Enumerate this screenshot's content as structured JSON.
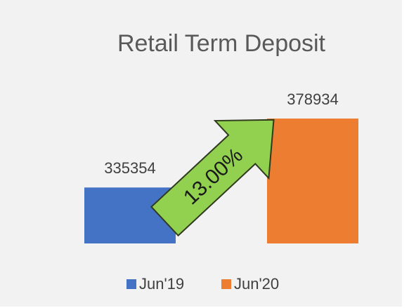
{
  "chart_data": {
    "type": "bar",
    "title": "Retail Term Deposit",
    "categories": [
      null
    ],
    "series": [
      {
        "name": "Jun'19",
        "color": "#4472c4",
        "values": [
          335354
        ]
      },
      {
        "name": "Jun'20",
        "color": "#ed7d31",
        "values": [
          378934
        ]
      }
    ],
    "ylim": [
      300000,
      390000
    ],
    "annotation": "13.00%"
  }
}
